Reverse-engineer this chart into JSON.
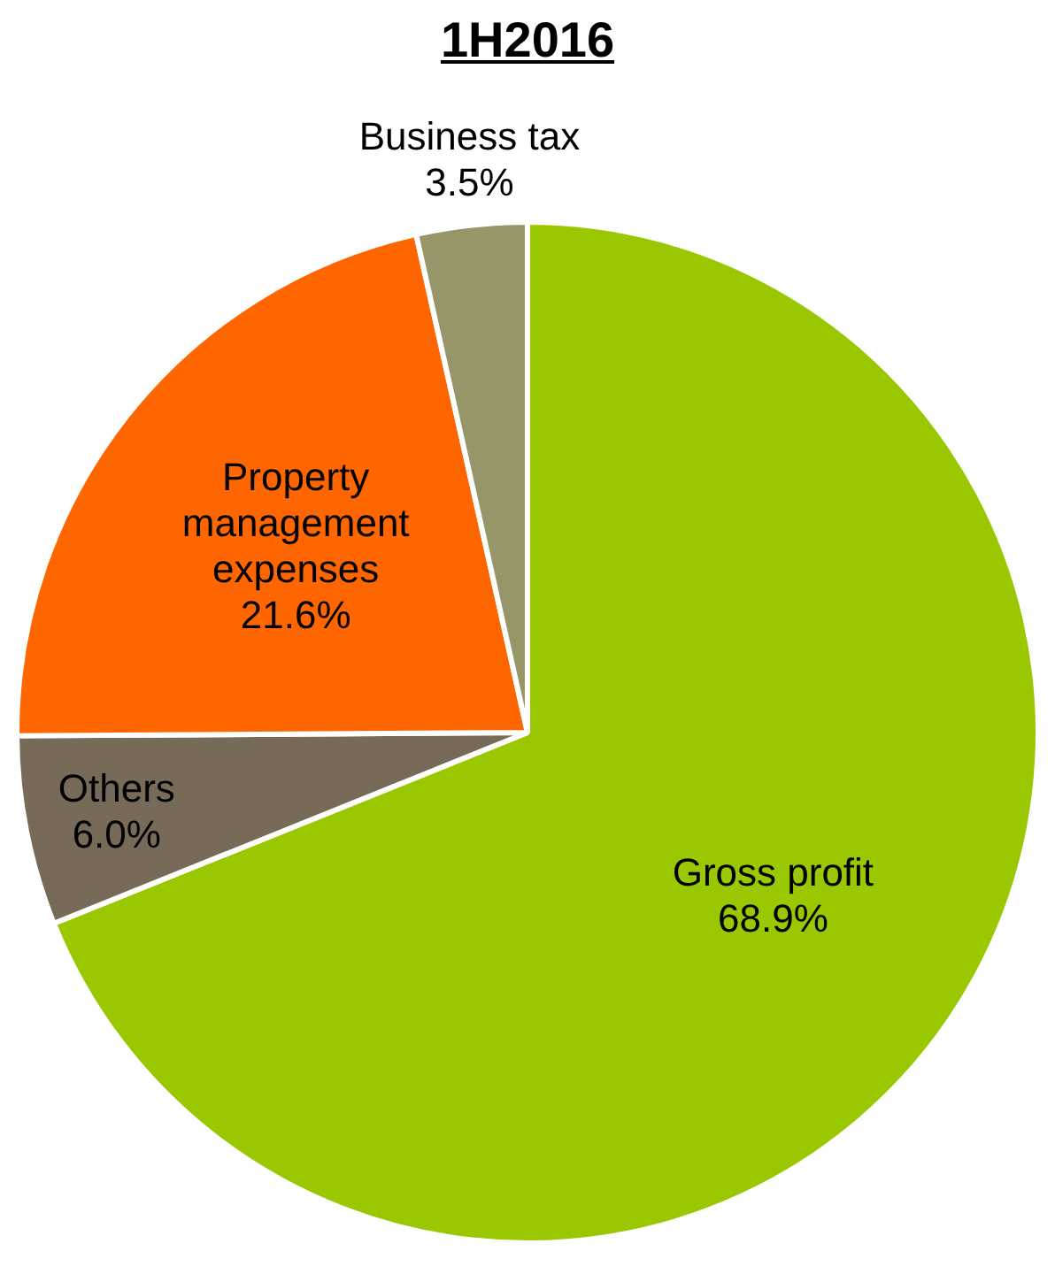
{
  "chart_data": {
    "type": "pie",
    "title": "1H2016",
    "categories": [
      "Gross profit",
      "Others",
      "Property management expenses",
      "Business tax"
    ],
    "values": [
      68.9,
      6.0,
      21.6,
      3.5
    ],
    "value_labels": [
      "68.9%",
      "6.0%",
      "21.6%",
      "3.5%"
    ],
    "colors": [
      "#99c800",
      "#776a58",
      "#ff6600",
      "#979668"
    ],
    "legend": false
  }
}
